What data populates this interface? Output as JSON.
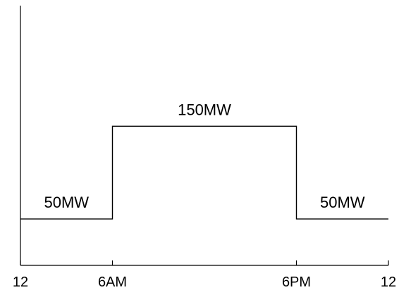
{
  "chart_data": {
    "type": "line",
    "step": true,
    "title": "",
    "xlabel": "",
    "ylabel": "",
    "xlim": [
      0,
      24
    ],
    "ylim": [
      0,
      280
    ],
    "grid": false,
    "x_ticks": [
      {
        "value": 0,
        "label": "12"
      },
      {
        "value": 6,
        "label": "6AM"
      },
      {
        "value": 18,
        "label": "6PM"
      },
      {
        "value": 24,
        "label": "12"
      }
    ],
    "series": [
      {
        "points": [
          {
            "x": 0,
            "y": 50
          },
          {
            "x": 6,
            "y": 50
          },
          {
            "x": 6,
            "y": 150
          },
          {
            "x": 18,
            "y": 150
          },
          {
            "x": 18,
            "y": 50
          },
          {
            "x": 24,
            "y": 50
          }
        ]
      }
    ],
    "annotations": [
      {
        "text": "50MW",
        "x": 3,
        "y": 50
      },
      {
        "text": "150MW",
        "x": 12,
        "y": 150
      },
      {
        "text": "50MW",
        "x": 21,
        "y": 50
      }
    ]
  }
}
